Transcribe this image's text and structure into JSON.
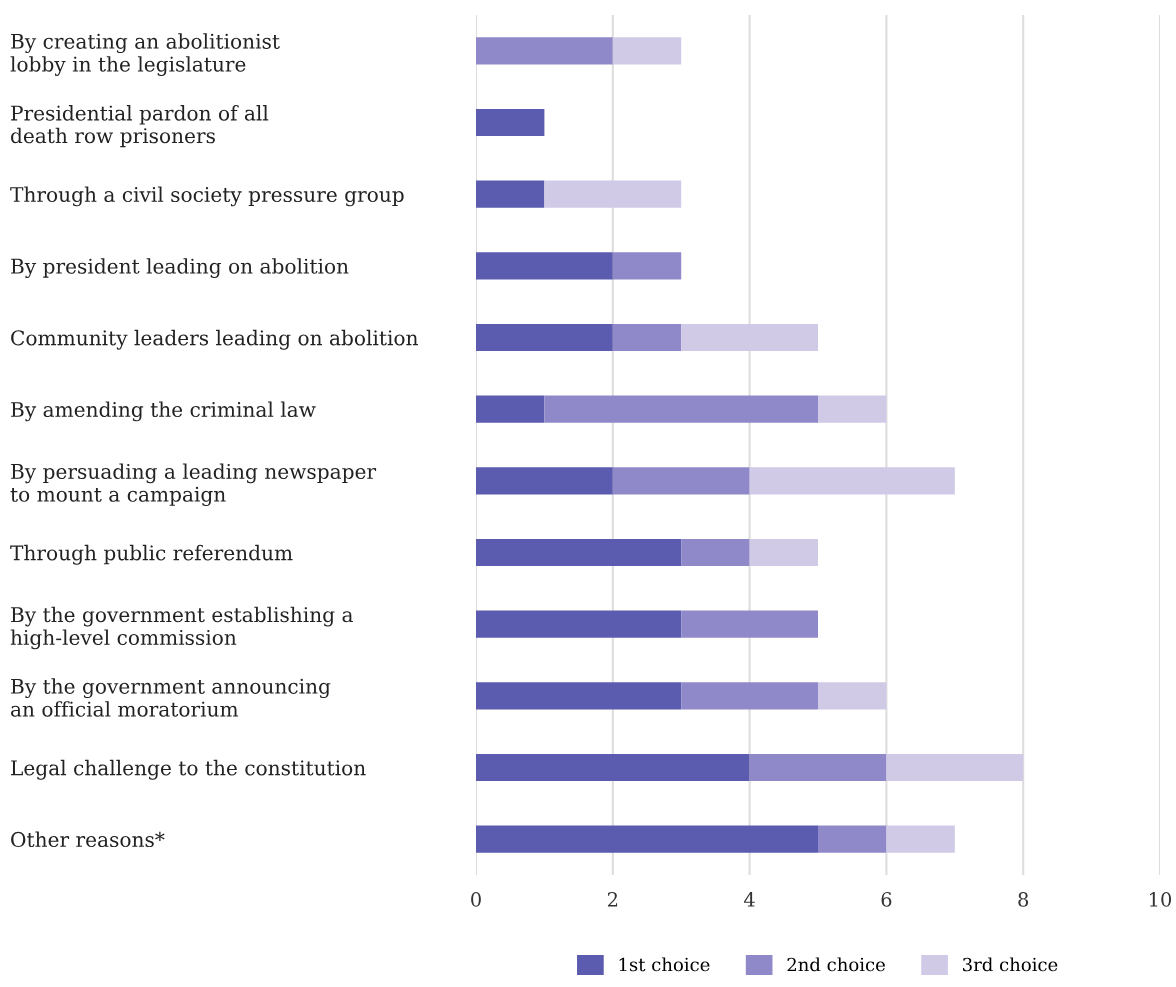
{
  "chart_data": {
    "type": "bar",
    "orientation": "horizontal",
    "stacked": true,
    "categories": [
      "By creating an abolitionist\nlobby in the legislature",
      "Presidential pardon of all\ndeath row prisoners",
      "Through a civil society pressure group",
      "By president leading on abolition",
      "Community leaders leading on abolition",
      "By amending the criminal law",
      "By persuading a leading newspaper\nto mount a campaign",
      "Through public referendum",
      "By the government establishing a\nhigh-level commission",
      "By the government announcing\nan official moratorium",
      "Legal challenge to the constitution",
      "Other reasons*"
    ],
    "series": [
      {
        "name": "1st choice",
        "color": "#5b5bb0",
        "values": [
          0,
          1,
          1,
          2,
          2,
          1,
          2,
          3,
          3,
          3,
          4,
          5
        ]
      },
      {
        "name": "2nd choice",
        "color": "#8f89c9",
        "values": [
          2,
          0,
          0,
          1,
          1,
          4,
          2,
          1,
          2,
          2,
          2,
          1
        ]
      },
      {
        "name": "3rd choice",
        "color": "#d0cae7",
        "values": [
          1,
          0,
          2,
          0,
          2,
          1,
          3,
          1,
          0,
          1,
          2,
          1
        ]
      }
    ],
    "xlim": [
      0,
      10
    ],
    "xticks": [
      0,
      2,
      4,
      6,
      8,
      10
    ],
    "grid": "x",
    "legend": "bottom"
  }
}
